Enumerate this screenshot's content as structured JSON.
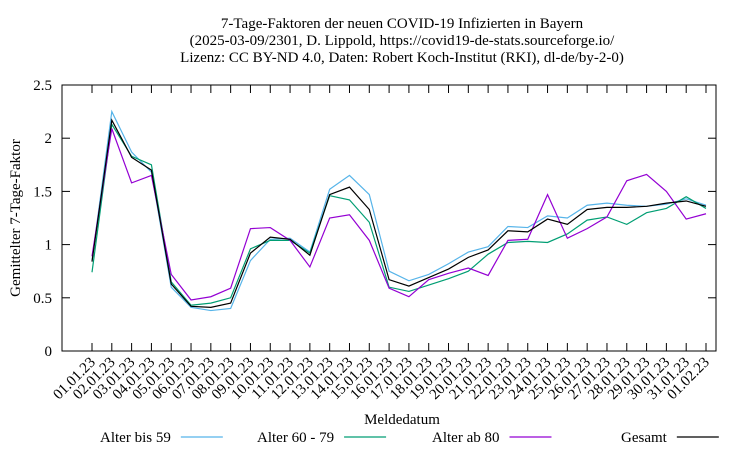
{
  "chart_data": {
    "type": "line",
    "title": [
      "7-Tage-Faktoren der neuen COVID-19 Infizierten in Bayern",
      "(2025-03-09/2301, D. Lippold, https://covid19-de-stats.sourceforge.io/",
      "Lizenz: CC BY-ND 4.0, Daten: Robert Koch-Institut (RKI), dl-de/by-2-0)"
    ],
    "xlabel": "Meldedatum",
    "ylabel": "Gemittelter 7-Tage-Faktor",
    "categories": [
      "01.01.23",
      "02.01.23",
      "03.01.23",
      "04.01.23",
      "05.01.23",
      "06.01.23",
      "07.01.23",
      "08.01.23",
      "09.01.23",
      "10.01.23",
      "11.01.23",
      "12.01.23",
      "13.01.23",
      "14.01.23",
      "15.01.23",
      "16.01.23",
      "17.01.23",
      "18.01.23",
      "19.01.23",
      "20.01.23",
      "21.01.23",
      "22.01.23",
      "23.01.23",
      "24.01.23",
      "25.01.23",
      "26.01.23",
      "27.01.23",
      "28.01.23",
      "29.01.23",
      "30.01.23",
      "31.01.23",
      "01.02.23"
    ],
    "ylim": [
      0,
      2.5
    ],
    "yticks": [
      0,
      0.5,
      1,
      1.5,
      2,
      2.5
    ],
    "grid": false,
    "legend": "bottom",
    "series": [
      {
        "name": "Alter bis 59",
        "color": "#56b4e9",
        "values": [
          0.85,
          2.25,
          1.87,
          1.68,
          0.6,
          0.41,
          0.38,
          0.4,
          0.85,
          1.05,
          1.06,
          0.93,
          1.52,
          1.65,
          1.47,
          0.75,
          0.66,
          0.72,
          0.82,
          0.93,
          0.98,
          1.17,
          1.16,
          1.27,
          1.25,
          1.37,
          1.39,
          1.37,
          1.36,
          1.38,
          1.43,
          1.37
        ]
      },
      {
        "name": "Alter 60 - 79",
        "color": "#009e73",
        "values": [
          0.74,
          2.13,
          1.83,
          1.75,
          0.65,
          0.43,
          0.45,
          0.5,
          0.96,
          1.04,
          1.04,
          0.92,
          1.46,
          1.42,
          1.21,
          0.6,
          0.56,
          0.62,
          0.68,
          0.75,
          0.91,
          1.02,
          1.03,
          1.02,
          1.1,
          1.23,
          1.26,
          1.19,
          1.3,
          1.34,
          1.45,
          1.34
        ]
      },
      {
        "name": "Alter ab 80",
        "color": "#9400d3",
        "values": [
          0.89,
          2.09,
          1.58,
          1.65,
          0.72,
          0.48,
          0.51,
          0.59,
          1.15,
          1.16,
          1.04,
          0.79,
          1.25,
          1.28,
          1.04,
          0.59,
          0.51,
          0.67,
          0.73,
          0.78,
          0.71,
          1.04,
          1.05,
          1.47,
          1.06,
          1.15,
          1.26,
          1.6,
          1.66,
          1.5,
          1.24,
          1.29
        ]
      },
      {
        "name": "Gesamt",
        "color": "#000000",
        "values": [
          0.84,
          2.17,
          1.82,
          1.7,
          0.63,
          0.42,
          0.41,
          0.45,
          0.92,
          1.07,
          1.05,
          0.9,
          1.47,
          1.54,
          1.33,
          0.67,
          0.61,
          0.69,
          0.77,
          0.88,
          0.95,
          1.13,
          1.12,
          1.24,
          1.19,
          1.33,
          1.35,
          1.35,
          1.36,
          1.39,
          1.41,
          1.36
        ]
      }
    ]
  }
}
